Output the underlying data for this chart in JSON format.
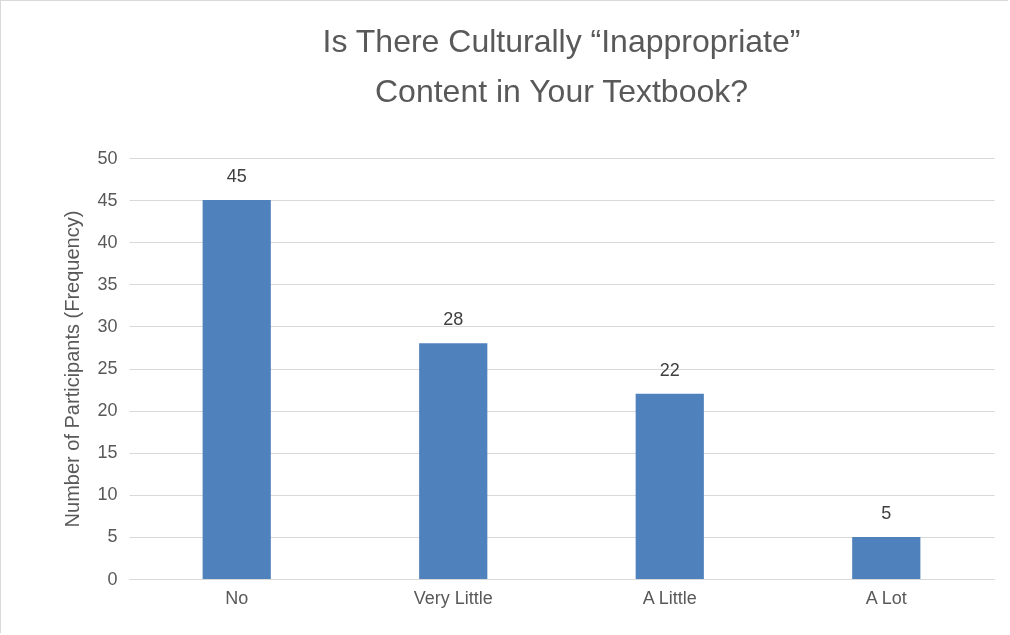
{
  "chart_data": {
    "type": "bar",
    "title": "Is There Culturally “Inappropriate” Content in Your Textbook?",
    "ylabel": "Number of Participants (Frequency)",
    "categories": [
      "No",
      "Very Little",
      "A Little",
      "A Lot"
    ],
    "values": [
      45,
      28,
      22,
      5
    ],
    "color": "#4f81bd",
    "ylim": [
      0,
      50
    ],
    "yticks": [
      0,
      5,
      10,
      15,
      20,
      25,
      30,
      35,
      40,
      45,
      50
    ],
    "grid": "y",
    "data_labels": true
  }
}
